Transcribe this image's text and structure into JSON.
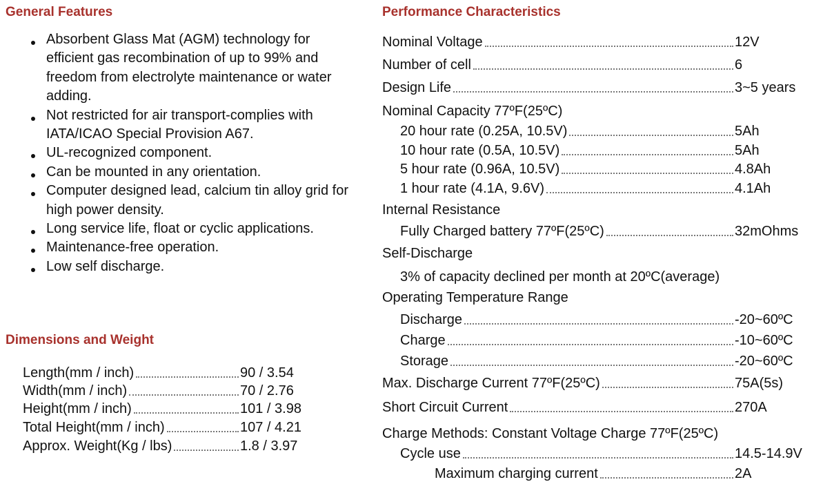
{
  "general_features": {
    "title": "General Features",
    "items": [
      "Absorbent Glass Mat (AGM) technology for efficient gas recombination of up to 99% and freedom from electrolyte maintenance or water adding.",
      "Not restricted for air transport-complies with IATA/ICAO Special Provision A67.",
      "UL-recognized component.",
      "Can be mounted in any orientation.",
      "Computer designed lead, calcium tin alloy grid for high power density.",
      "Long service life, float or cyclic applications.",
      "Maintenance-free operation.",
      "Low self discharge."
    ]
  },
  "dimensions": {
    "title": "Dimensions and Weight",
    "rows": [
      {
        "label": "Length(mm / inch)",
        "value": "90 / 3.54"
      },
      {
        "label": "Width(mm / inch)",
        "value": "70 / 2.76"
      },
      {
        "label": "Height(mm / inch)",
        "value": "101 / 3.98"
      },
      {
        "label": "Total Height(mm / inch)",
        "value": "107 / 4.21"
      },
      {
        "label": "Approx. Weight(Kg / lbs)",
        "value": "1.8 / 3.97"
      }
    ]
  },
  "performance": {
    "title": "Performance Characteristics",
    "rows": [
      {
        "label": "Nominal Voltage",
        "value": "12V"
      },
      {
        "label": "Number of cell",
        "value": "6"
      },
      {
        "label": "Design Life",
        "value": "3~5 years"
      },
      {
        "label": "Nominal Capacity 77ºF(25ºC)"
      },
      {
        "label": "20 hour rate (0.25A, 10.5V)",
        "value": "5Ah"
      },
      {
        "label": "10 hour rate (0.5A, 10.5V)",
        "value": "5Ah"
      },
      {
        "label": "5 hour rate (0.96A, 10.5V)",
        "value": "4.8Ah"
      },
      {
        "label": "1 hour rate (4.1A, 9.6V)",
        "value": "4.1Ah"
      },
      {
        "label": "Internal Resistance"
      },
      {
        "label": "Fully Charged battery 77ºF(25ºC)",
        "value": "32mOhms"
      },
      {
        "label": "Self-Discharge"
      },
      {
        "label": "3% of capacity declined per month at 20ºC(average)"
      },
      {
        "label": "Operating Temperature Range"
      },
      {
        "label": "Discharge",
        "value": "-20~60ºC"
      },
      {
        "label": "Charge",
        "value": "-10~60ºC"
      },
      {
        "label": "Storage",
        "value": "-20~60ºC"
      },
      {
        "label": "Max. Discharge Current 77ºF(25ºC)",
        "value": "75A(5s)"
      },
      {
        "label": "Short Circuit Current",
        "value": "270A"
      },
      {
        "label": "Charge Methods: Constant Voltage Charge 77ºF(25ºC)"
      },
      {
        "label": "Cycle use",
        "value": "14.5-14.9V"
      },
      {
        "label": "Maximum charging current",
        "value": "2A"
      }
    ]
  }
}
